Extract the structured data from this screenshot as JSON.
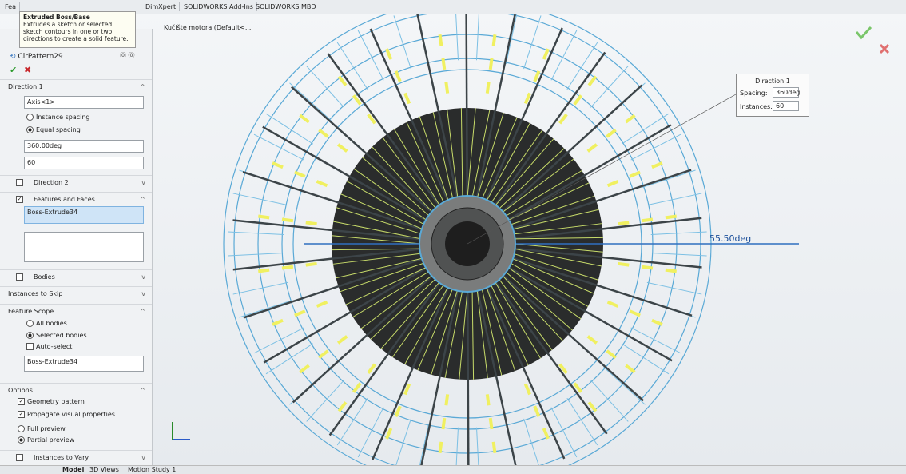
{
  "tabs": [
    "Fea",
    "DimXpert",
    "SOLIDWORKS Add-Ins",
    "SOLIDWORKS MBD"
  ],
  "tooltip": {
    "title": "Extruded Boss/Base",
    "text": "Extrudes a sketch or selected sketch contours in one or two directions to create a solid feature."
  },
  "tree_item": "Kućište motora  (Default<...",
  "panel": {
    "feature": "CirPattern29",
    "direction1": {
      "title": "Direction 1",
      "axis": "Axis<1>",
      "instance_spacing": "Instance spacing",
      "equal_spacing": "Equal spacing",
      "angle": "360.00deg",
      "instances": "60"
    },
    "direction2": "Direction 2",
    "features_and_faces": {
      "title": "Features and Faces",
      "item": "Boss-Extrude34"
    },
    "bodies": "Bodies",
    "instances_to_skip": "Instances to Skip",
    "feature_scope": {
      "title": "Feature Scope",
      "all_bodies": "All bodies",
      "selected_bodies": "Selected bodies",
      "auto_select": "Auto-select",
      "item": "Boss-Extrude34"
    },
    "options": {
      "title": "Options",
      "geometry_pattern": "Geometry pattern",
      "propagate": "Propagate visual properties",
      "full_preview": "Full preview",
      "partial_preview": "Partial preview"
    },
    "instances_to_vary": "Instances to Vary"
  },
  "callout": {
    "title": "Direction 1",
    "spacing_label": "Spacing:",
    "spacing": "360deg",
    "instances_label": "Instances:",
    "instances": "60"
  },
  "dimension": "55.50deg",
  "bottom_tabs": [
    "Model",
    "3D Views",
    "Motion Study 1"
  ]
}
